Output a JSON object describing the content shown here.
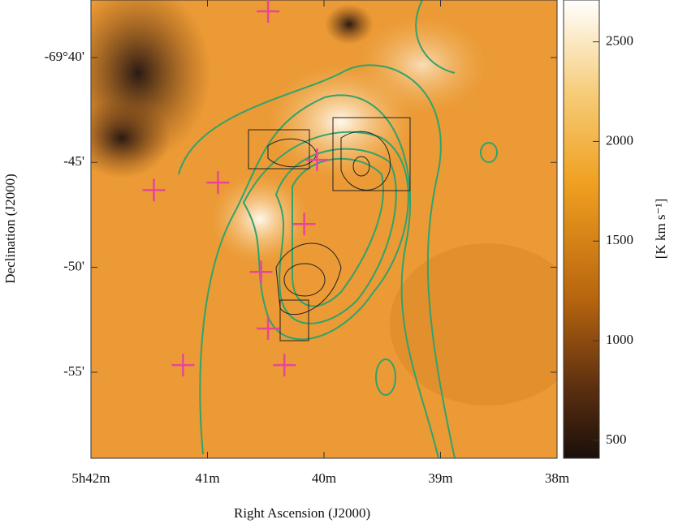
{
  "chart_data": {
    "type": "scatter",
    "xlabel": "Right Ascension (J2000)",
    "ylabel": "Declination (J2000)",
    "colorbar_label": "[K km s⁻¹]",
    "xlim": [
      42,
      38
    ],
    "xticks": [
      {
        "value": 42,
        "label": "5h42m"
      },
      {
        "value": 41,
        "label": "41m"
      },
      {
        "value": 40,
        "label": "40m"
      },
      {
        "value": 39,
        "label": "39m"
      },
      {
        "value": 38,
        "label": "38m"
      }
    ],
    "ylim": [
      -69.621,
      -69.985
    ],
    "yticks": [
      {
        "value": -69.6667,
        "label": "-69°40'"
      },
      {
        "value": -69.75,
        "label": "-45'"
      },
      {
        "value": -69.8333,
        "label": "-50'"
      },
      {
        "value": -69.9167,
        "label": "-55'"
      }
    ],
    "clim": [
      410,
      2710
    ],
    "cticks": [
      500,
      1000,
      1500,
      2000,
      2500
    ],
    "series": [
      {
        "color": "#e8459a",
        "x": [
          40.48,
          41.46,
          40.91,
          40.06,
          40.17,
          40.54,
          40.48,
          41.21,
          40.34
        ],
        "values": [
          -69.63,
          -69.772,
          -69.766,
          -69.748,
          -69.799,
          -69.837,
          -69.882,
          -69.911,
          -69.911
        ]
      }
    ]
  }
}
